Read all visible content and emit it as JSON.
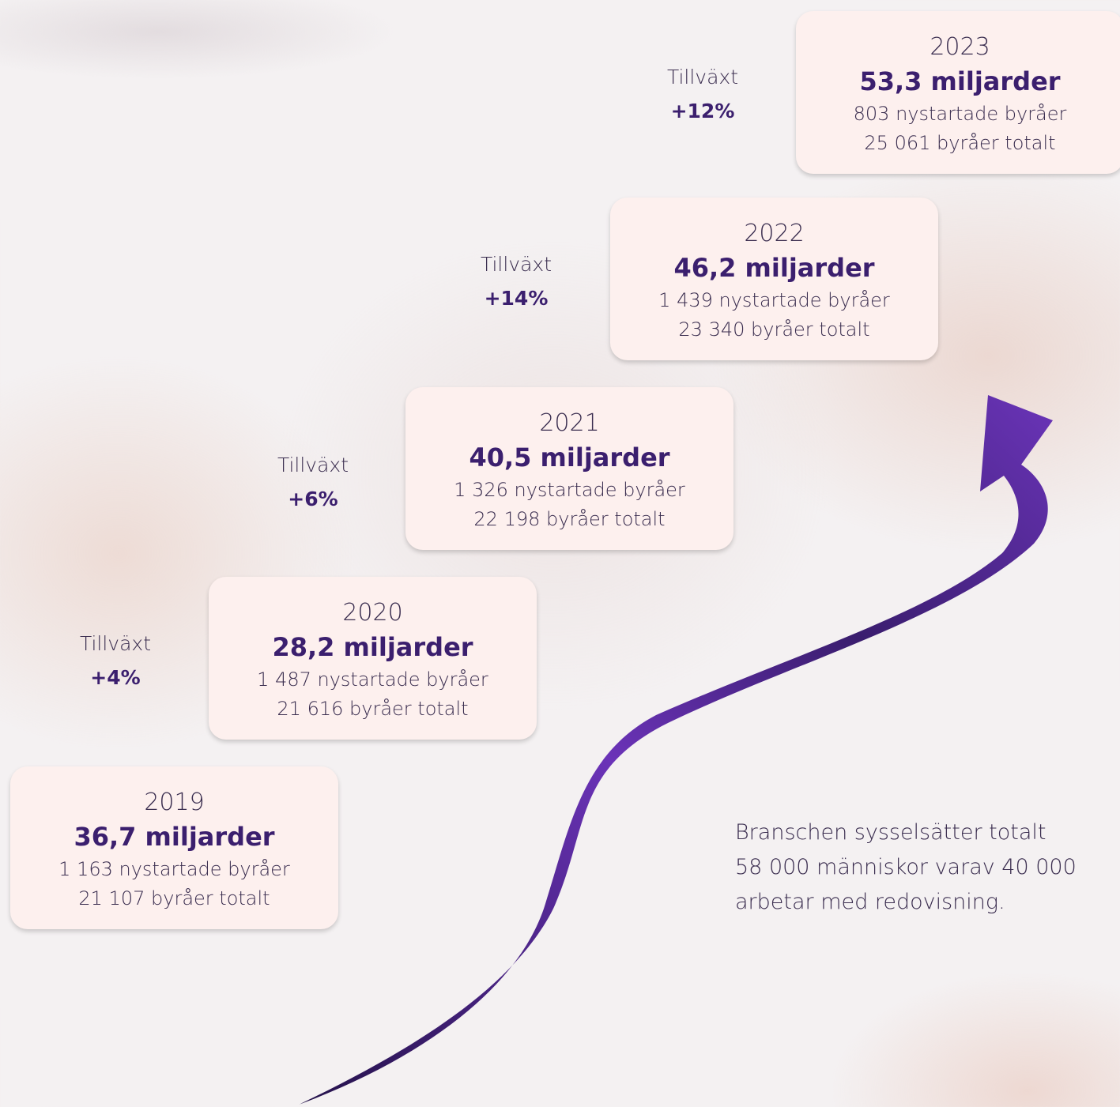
{
  "cards": [
    {
      "year": "2019",
      "amount": "36,7 miljarder",
      "new": "1 163 nystartade byråer",
      "total": "21 107 byråer totalt"
    },
    {
      "year": "2020",
      "amount": "28,2 miljarder",
      "new": "1 487 nystartade byråer",
      "total": "21 616 byråer totalt"
    },
    {
      "year": "2021",
      "amount": "40,5 miljarder",
      "new": "1 326 nystartade byråer",
      "total": "22 198 byråer totalt"
    },
    {
      "year": "2022",
      "amount": "46,2 miljarder",
      "new": "1 439 nystartade byråer",
      "total": "23 340 byråer totalt"
    },
    {
      "year": "2023",
      "amount": "53,3 miljarder",
      "new": "803 nystartade byråer",
      "total": "25 061 byråer totalt"
    }
  ],
  "growth": [
    {
      "label": "Tillväxt",
      "value": "+4%"
    },
    {
      "label": "Tillväxt",
      "value": "+6%"
    },
    {
      "label": "Tillväxt",
      "value": "+14%"
    },
    {
      "label": "Tillväxt",
      "value": "+12%"
    }
  ],
  "note": [
    "Branschen sysselsätter totalt",
    "58 000 människor varav 40 000",
    "arbetar med redovisning."
  ]
}
